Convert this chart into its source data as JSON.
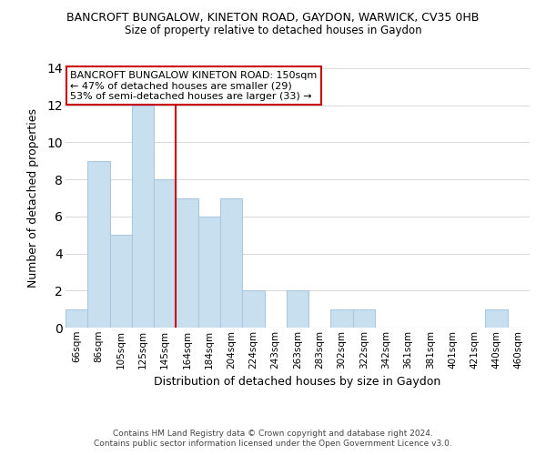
{
  "title": "BANCROFT BUNGALOW, KINETON ROAD, GAYDON, WARWICK, CV35 0HB",
  "subtitle": "Size of property relative to detached houses in Gaydon",
  "xlabel": "Distribution of detached houses by size in Gaydon",
  "ylabel": "Number of detached properties",
  "bar_color": "#c8dff0",
  "bar_edge_color": "#aac8e0",
  "categories": [
    "66sqm",
    "86sqm",
    "105sqm",
    "125sqm",
    "145sqm",
    "164sqm",
    "184sqm",
    "204sqm",
    "224sqm",
    "243sqm",
    "263sqm",
    "283sqm",
    "302sqm",
    "322sqm",
    "342sqm",
    "361sqm",
    "381sqm",
    "401sqm",
    "421sqm",
    "440sqm",
    "460sqm"
  ],
  "values": [
    1,
    9,
    5,
    12,
    8,
    7,
    6,
    7,
    2,
    0,
    2,
    0,
    1,
    1,
    0,
    0,
    0,
    0,
    0,
    1,
    0
  ],
  "ylim": [
    0,
    14
  ],
  "yticks": [
    0,
    2,
    4,
    6,
    8,
    10,
    12,
    14
  ],
  "vline_color": "#cc0000",
  "annotation_title": "BANCROFT BUNGALOW KINETON ROAD: 150sqm",
  "annotation_line1": "← 47% of detached houses are smaller (29)",
  "annotation_line2": "53% of semi-detached houses are larger (33) →",
  "annotation_box_color": "#ffffff",
  "annotation_box_edge": "#cc0000",
  "footer1": "Contains HM Land Registry data © Crown copyright and database right 2024.",
  "footer2": "Contains public sector information licensed under the Open Government Licence v3.0.",
  "background_color": "#ffffff",
  "grid_color": "#d8d8d8"
}
